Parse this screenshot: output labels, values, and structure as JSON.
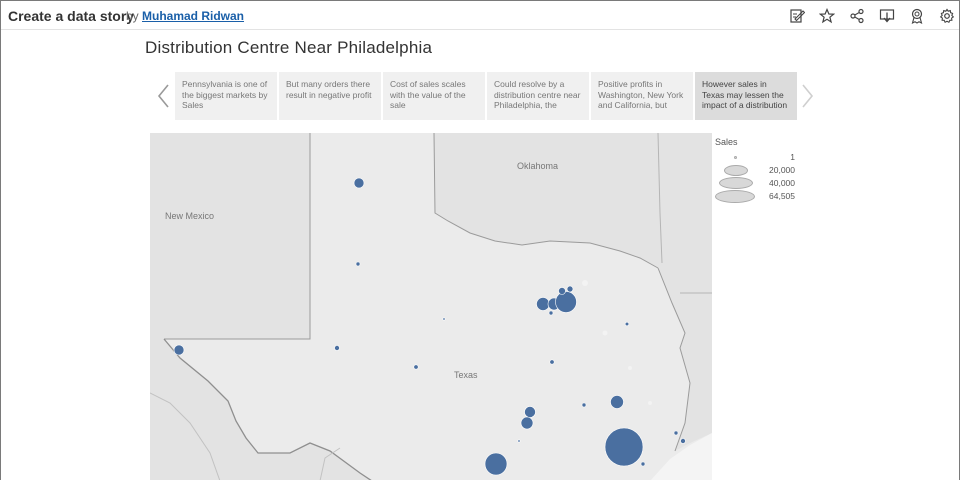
{
  "header": {
    "title": "Create a data story",
    "by": "by",
    "author": "Muhamad Ridwan",
    "icons": [
      "edit-icon",
      "star-icon",
      "share-icon",
      "download-icon",
      "badge-icon",
      "gear-icon"
    ]
  },
  "story": {
    "title": "Distribution Centre Near Philadelphia",
    "points": [
      "Pennsylvania is one of the biggest markets by Sales",
      "But many orders there result in negative profit",
      "Cost of sales scales with the value of the sale",
      "Could resolve by a distribution centre near Philadelphia, the",
      "Positive profits in Washington, New York and California, but",
      "However sales in Texas may lessen the impact of a distribution"
    ],
    "active_index": 5
  },
  "map": {
    "labels": {
      "new_mexico": "New Mexico",
      "oklahoma": "Oklahoma",
      "texas": "Texas"
    },
    "marker_color": "#4a6fa0"
  },
  "legend": {
    "title": "Sales",
    "items": [
      "1",
      "20,000",
      "40,000",
      "64,505"
    ]
  }
}
